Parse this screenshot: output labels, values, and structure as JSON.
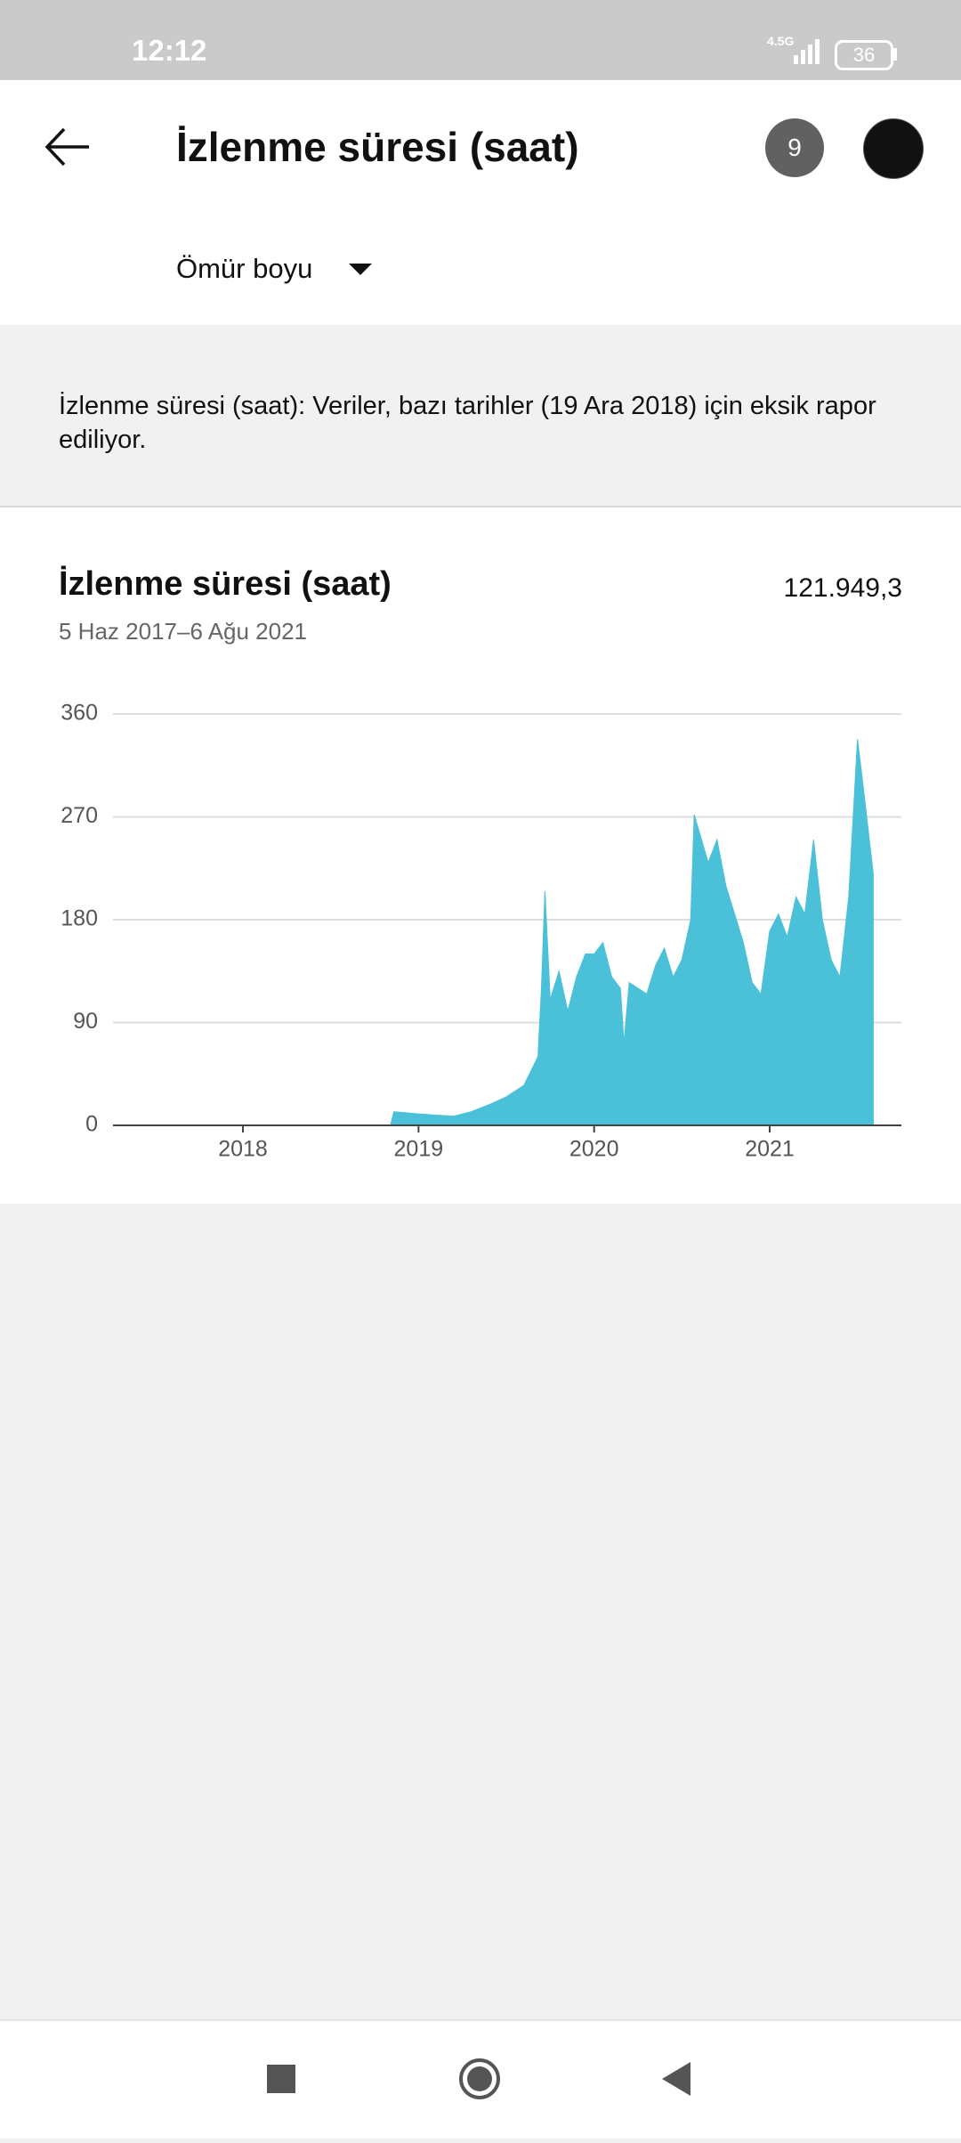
{
  "status_bar": {
    "time": "12:12",
    "network": "4.5G",
    "battery": "36"
  },
  "header": {
    "title": "İzlenme süresi (saat)",
    "badge": "9",
    "period": "Ömür boyu"
  },
  "notice": "İzlenme süresi (saat): Veriler, bazı tarihler (19 Ara 2018) için eksik rapor ediliyor.",
  "chart_data": {
    "type": "area",
    "title": "İzlenme süresi (saat)",
    "subtitle": "5 Haz 2017–6 Ağu 2021",
    "summary_value": "121.949,3",
    "x": [
      2017.43,
      2018.84,
      2018.86,
      2019.0,
      2019.1,
      2019.2,
      2019.3,
      2019.4,
      2019.5,
      2019.6,
      2019.68,
      2019.7,
      2019.72,
      2019.75,
      2019.8,
      2019.85,
      2019.9,
      2019.95,
      2020.0,
      2020.05,
      2020.1,
      2020.15,
      2020.17,
      2020.2,
      2020.3,
      2020.35,
      2020.4,
      2020.45,
      2020.5,
      2020.55,
      2020.57,
      2020.65,
      2020.7,
      2020.75,
      2020.8,
      2020.85,
      2020.9,
      2020.95,
      2021.0,
      2021.05,
      2021.1,
      2021.15,
      2021.2,
      2021.25,
      2021.3,
      2021.35,
      2021.4,
      2021.45,
      2021.5,
      2021.53,
      2021.56,
      2021.59
    ],
    "series": [
      {
        "name": "İzlenme süresi (saat)",
        "color": "#4bc0d9",
        "values": [
          0,
          0,
          12,
          10,
          9,
          8,
          12,
          18,
          25,
          35,
          60,
          120,
          205,
          110,
          135,
          100,
          130,
          150,
          150,
          160,
          130,
          120,
          72,
          125,
          115,
          140,
          155,
          130,
          145,
          180,
          272,
          230,
          250,
          210,
          185,
          160,
          125,
          115,
          170,
          185,
          165,
          200,
          185,
          250,
          180,
          145,
          130,
          200,
          338,
          300,
          260,
          220
        ]
      }
    ],
    "xlim": [
      2017.26,
      2021.75
    ],
    "xticks": [
      2018,
      2019,
      2020,
      2021
    ],
    "ylim": [
      0,
      360
    ],
    "yticks": [
      0,
      90,
      180,
      270,
      360
    ],
    "grid": true
  }
}
